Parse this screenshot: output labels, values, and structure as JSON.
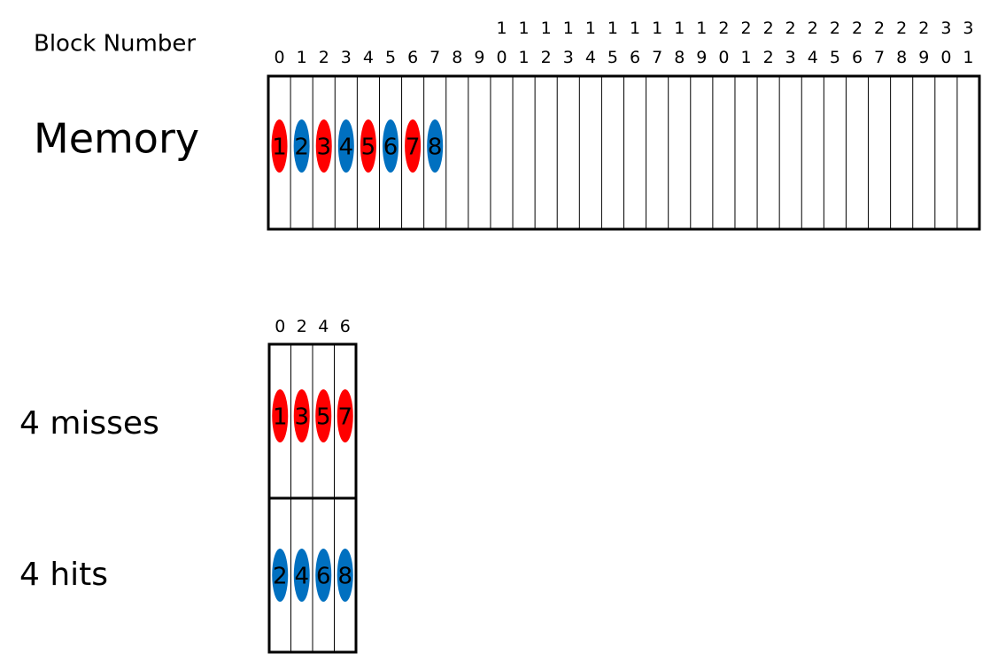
{
  "labels": {
    "block_number": "Block Number",
    "memory": "Memory",
    "misses": "4 misses",
    "hits": "4 hits"
  },
  "memory": {
    "block_numbers": [
      "0",
      "1",
      "2",
      "3",
      "4",
      "5",
      "6",
      "7",
      "8",
      "9",
      "10",
      "11",
      "12",
      "13",
      "14",
      "15",
      "16",
      "17",
      "18",
      "19",
      "20",
      "21",
      "22",
      "23",
      "24",
      "25",
      "26",
      "27",
      "28",
      "29",
      "30",
      "31"
    ],
    "items": [
      {
        "label": "1",
        "color": "#ff0000"
      },
      {
        "label": "2",
        "color": "#0070c0"
      },
      {
        "label": "3",
        "color": "#ff0000"
      },
      {
        "label": "4",
        "color": "#0070c0"
      },
      {
        "label": "5",
        "color": "#ff0000"
      },
      {
        "label": "6",
        "color": "#0070c0"
      },
      {
        "label": "7",
        "color": "#ff0000"
      },
      {
        "label": "8",
        "color": "#0070c0"
      }
    ]
  },
  "cache": {
    "block_numbers": [
      "0",
      "2",
      "4",
      "6"
    ],
    "misses": [
      {
        "label": "1",
        "color": "#ff0000"
      },
      {
        "label": "3",
        "color": "#ff0000"
      },
      {
        "label": "5",
        "color": "#ff0000"
      },
      {
        "label": "7",
        "color": "#ff0000"
      }
    ],
    "hits": [
      {
        "label": "2",
        "color": "#0070c0"
      },
      {
        "label": "4",
        "color": "#0070c0"
      },
      {
        "label": "6",
        "color": "#0070c0"
      },
      {
        "label": "8",
        "color": "#0070c0"
      }
    ]
  }
}
